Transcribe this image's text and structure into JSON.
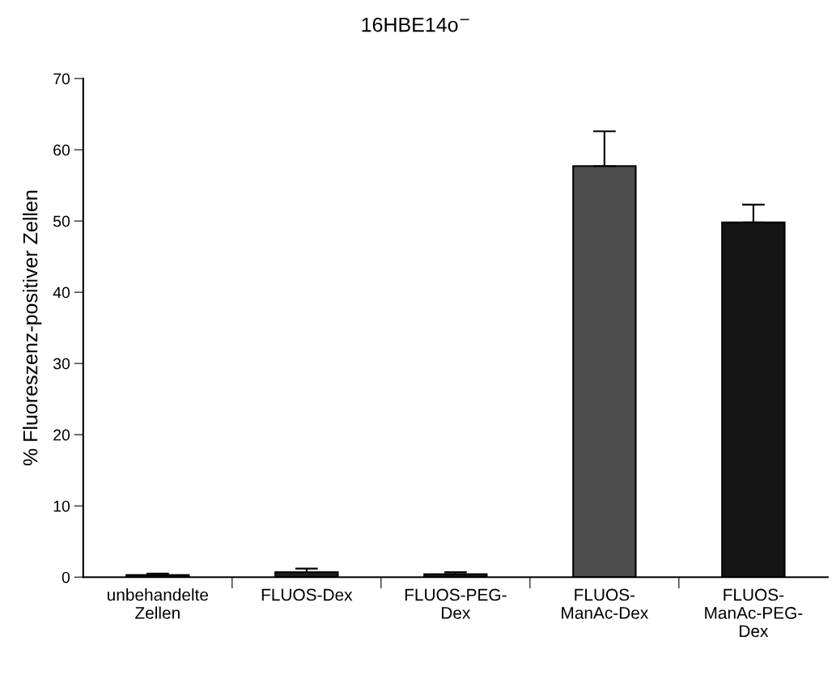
{
  "chart_data": {
    "type": "bar",
    "title": "16HBE14o$^{−}$",
    "ylabel": "% Fluoreszenz-positiver Zellen",
    "categories": [
      "unbehandelte\nZellen",
      "FLUOS-Dex",
      "FLUOS-PEG-\nDex",
      "FLUOS-\nManAc-Dex",
      "FLUOS-\nManAc-PEG-\nDex"
    ],
    "values": [
      0.3,
      0.7,
      0.4,
      57.7,
      49.8
    ],
    "errors": [
      [
        0.3,
        0.5
      ],
      [
        0.7,
        1.2
      ],
      [
        0.4,
        0.7
      ],
      [
        57.7,
        62.6
      ],
      [
        49.8,
        52.3
      ]
    ],
    "colors": [
      "#1a1a1a",
      "#1a1a1a",
      "#1a1a1a",
      "#4d4d4d",
      "#141414"
    ],
    "ylim": [
      0,
      70
    ],
    "yticks": [
      0,
      10,
      20,
      30,
      40,
      50,
      60,
      70
    ],
    "grid": false,
    "legend": false
  }
}
